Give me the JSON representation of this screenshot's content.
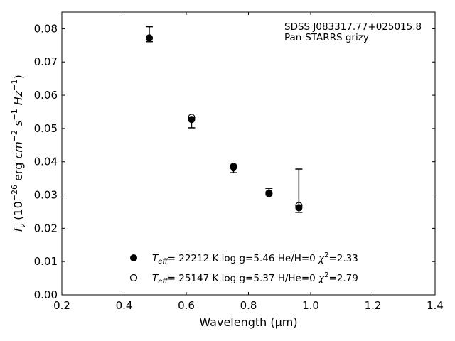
{
  "chart_data": {
    "type": "scatter",
    "xlabel": "Wavelength (μm)",
    "ylabel": "f_ν (10^-26 erg cm^-2 s^-1 Hz^-1)",
    "xlim": [
      0.2,
      1.4
    ],
    "ylim": [
      0.0,
      0.085
    ],
    "x_ticks": [
      "0.2",
      "0.4",
      "0.6",
      "0.8",
      "1.0",
      "1.2",
      "1.4"
    ],
    "y_ticks": [
      "0.00",
      "0.01",
      "0.02",
      "0.03",
      "0.04",
      "0.05",
      "0.06",
      "0.07",
      "0.08"
    ],
    "annotation_lines": [
      "SDSS J083317.77+025015.8",
      "Pan-STARRS grizy"
    ],
    "observed": {
      "x": [
        0.481,
        0.617,
        0.752,
        0.866,
        0.962
      ],
      "y": [
        0.0783,
        0.0523,
        0.038,
        0.0309,
        0.0312
      ],
      "yerr_low": [
        0.0761,
        0.0502,
        0.0367,
        0.03,
        0.0248
      ],
      "yerr_high": [
        0.0806,
        0.0532,
        0.0389,
        0.032,
        0.0378
      ]
    },
    "series": [
      {
        "name": "T_eff= 22212 K  log g=5.46  He/H=0  χ²=2.33",
        "marker": "filled-circle",
        "x": [
          0.481,
          0.617,
          0.752,
          0.866,
          0.962
        ],
        "y": [
          0.0772,
          0.0527,
          0.0384,
          0.0304,
          0.0262
        ]
      },
      {
        "name": "T_eff= 25147 K  log g=5.37  H/He=0  χ²=2.79",
        "marker": "open-circle",
        "x": [
          0.481,
          0.617,
          0.752,
          0.866,
          0.962
        ],
        "y": [
          0.0772,
          0.0533,
          0.0386,
          0.0306,
          0.0268
        ]
      }
    ],
    "legend_placement": "bottom-center",
    "grid": false
  }
}
